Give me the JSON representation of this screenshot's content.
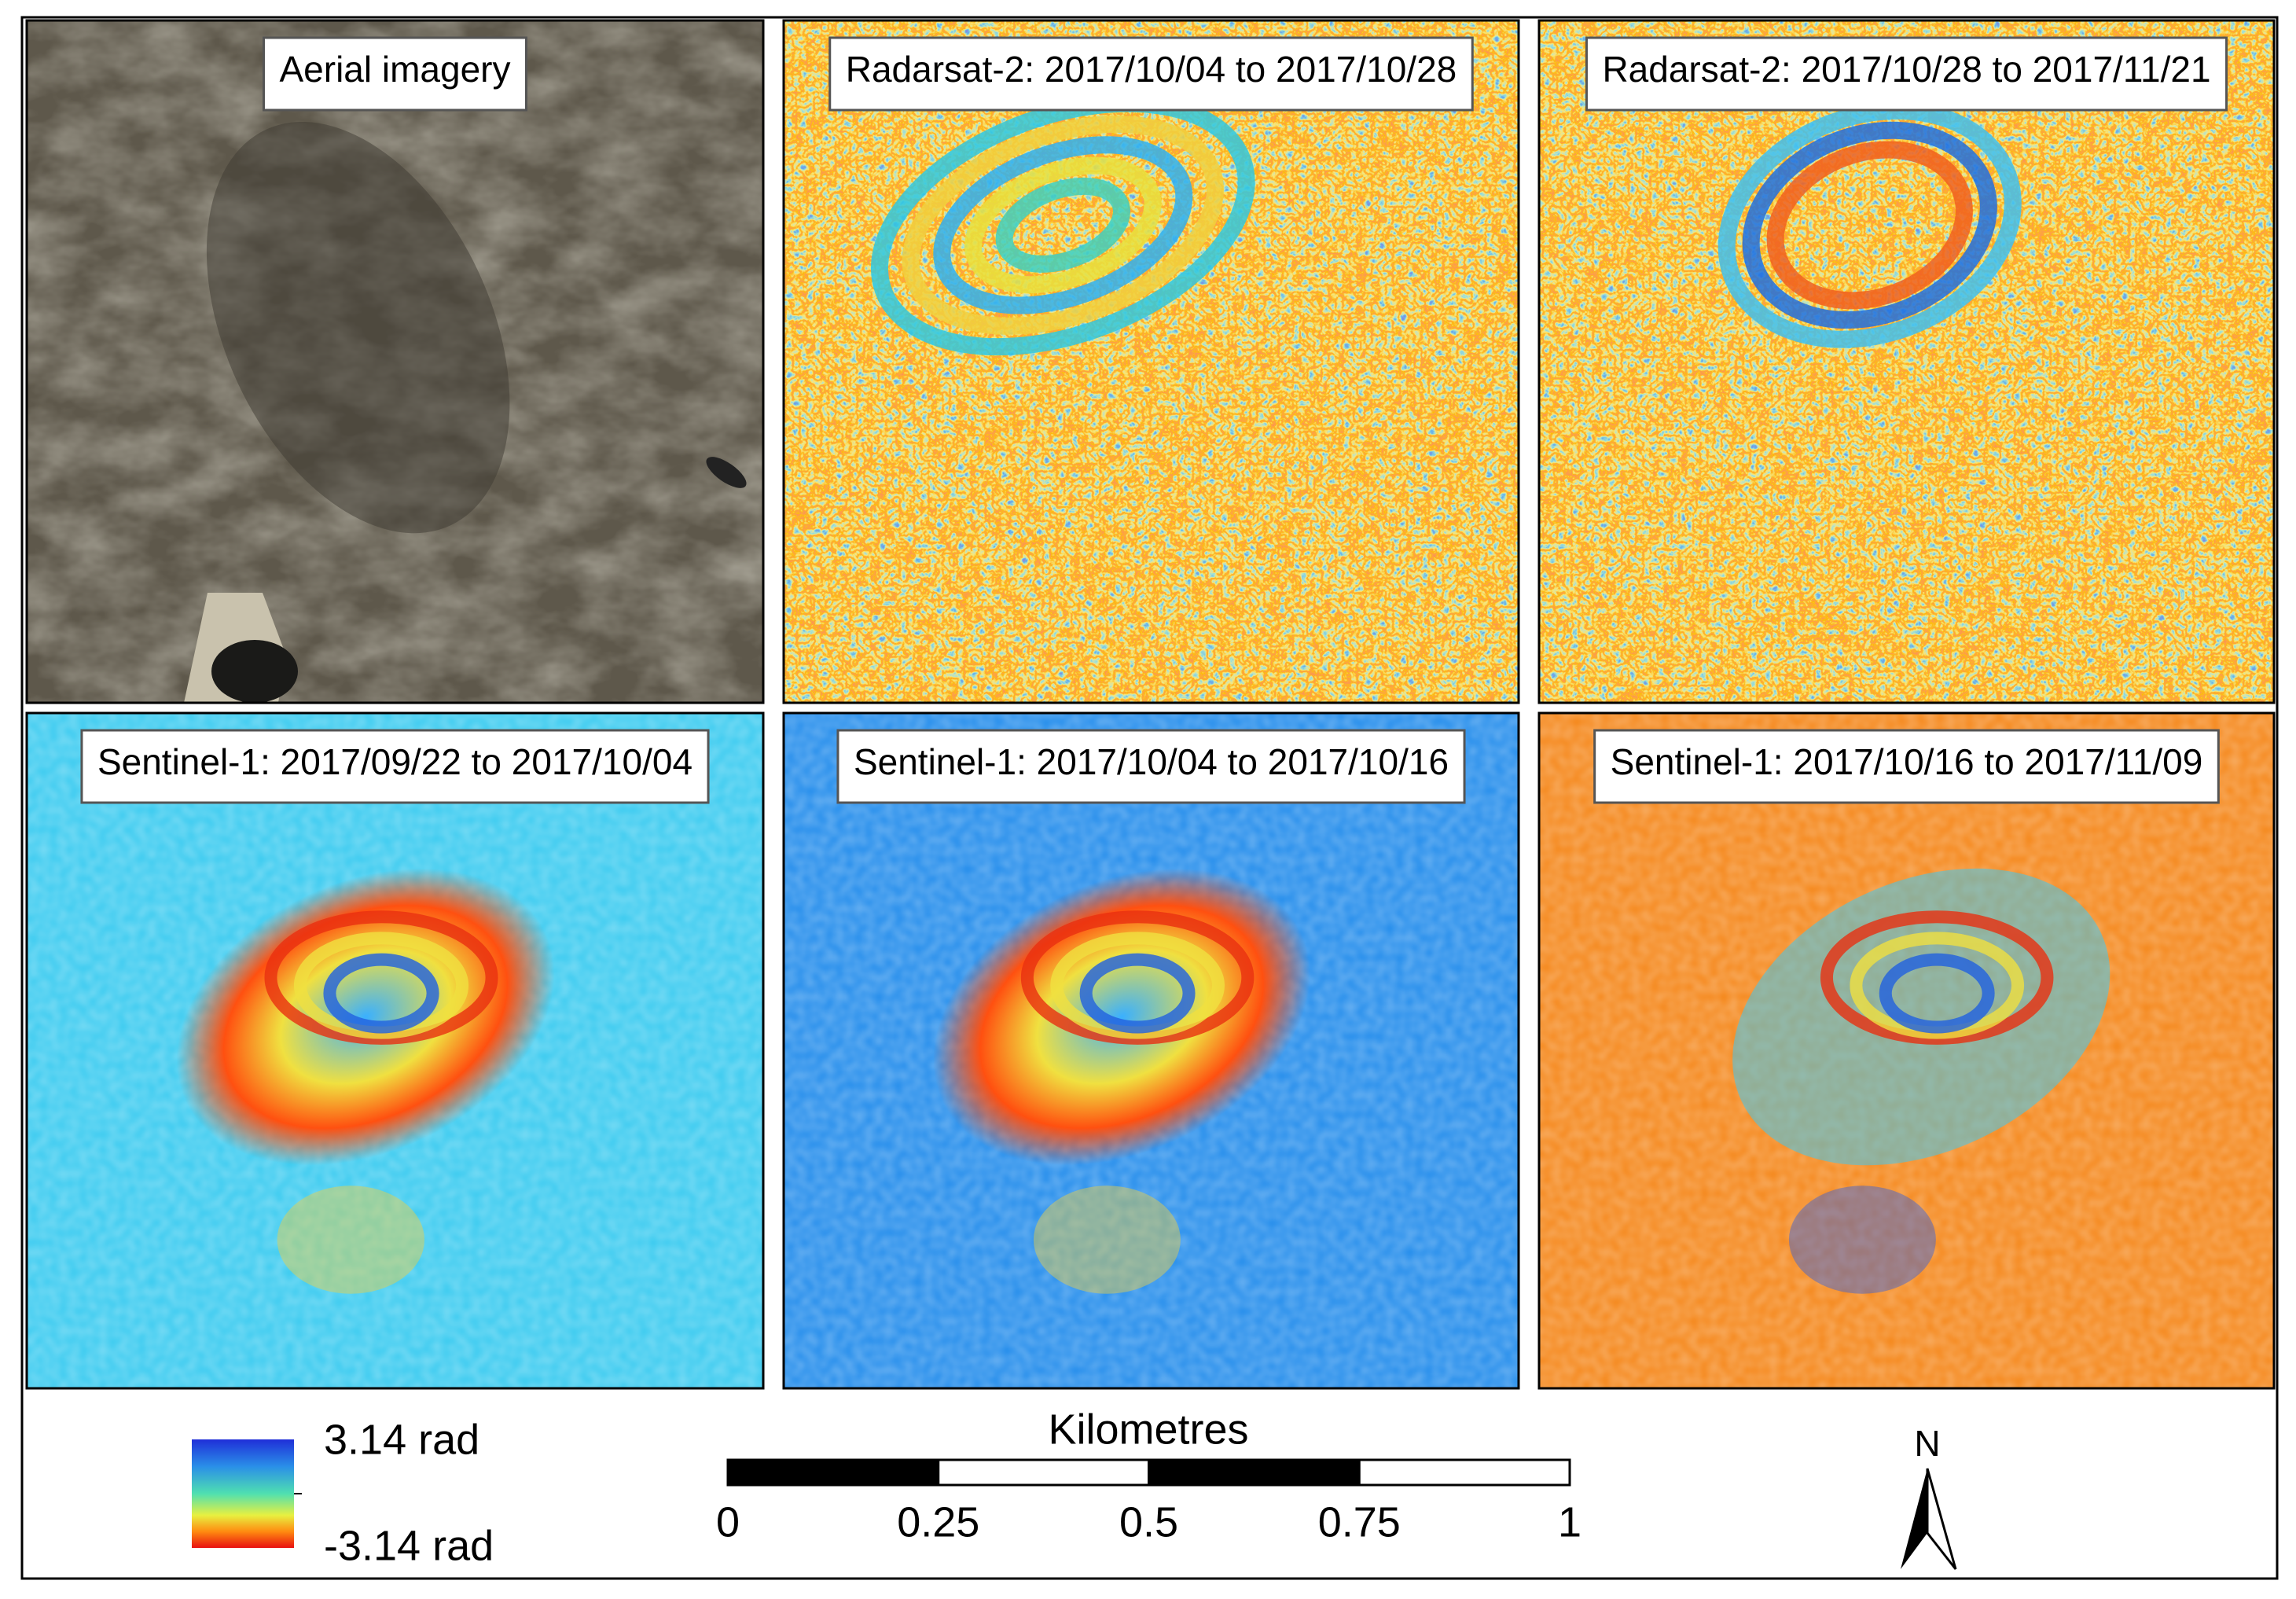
{
  "panels": [
    {
      "title": "Aerial imagery"
    },
    {
      "title": "Radarsat-2: 2017/10/04 to 2017/10/28"
    },
    {
      "title": "Radarsat-2: 2017/10/28 to 2017/11/21"
    },
    {
      "title": "Sentinel-1: 2017/09/22 to 2017/10/04"
    },
    {
      "title": "Sentinel-1: 2017/10/04 to 2017/10/16"
    },
    {
      "title": "Sentinel-1: 2017/10/16 to 2017/11/09"
    }
  ],
  "legend": {
    "max_label": "3.14 rad",
    "min_label": "-3.14 rad"
  },
  "scale_bar": {
    "title": "Kilometres",
    "ticks": [
      0,
      0.25,
      0.5,
      0.75,
      1
    ]
  },
  "north_arrow": {
    "label": "N"
  }
}
